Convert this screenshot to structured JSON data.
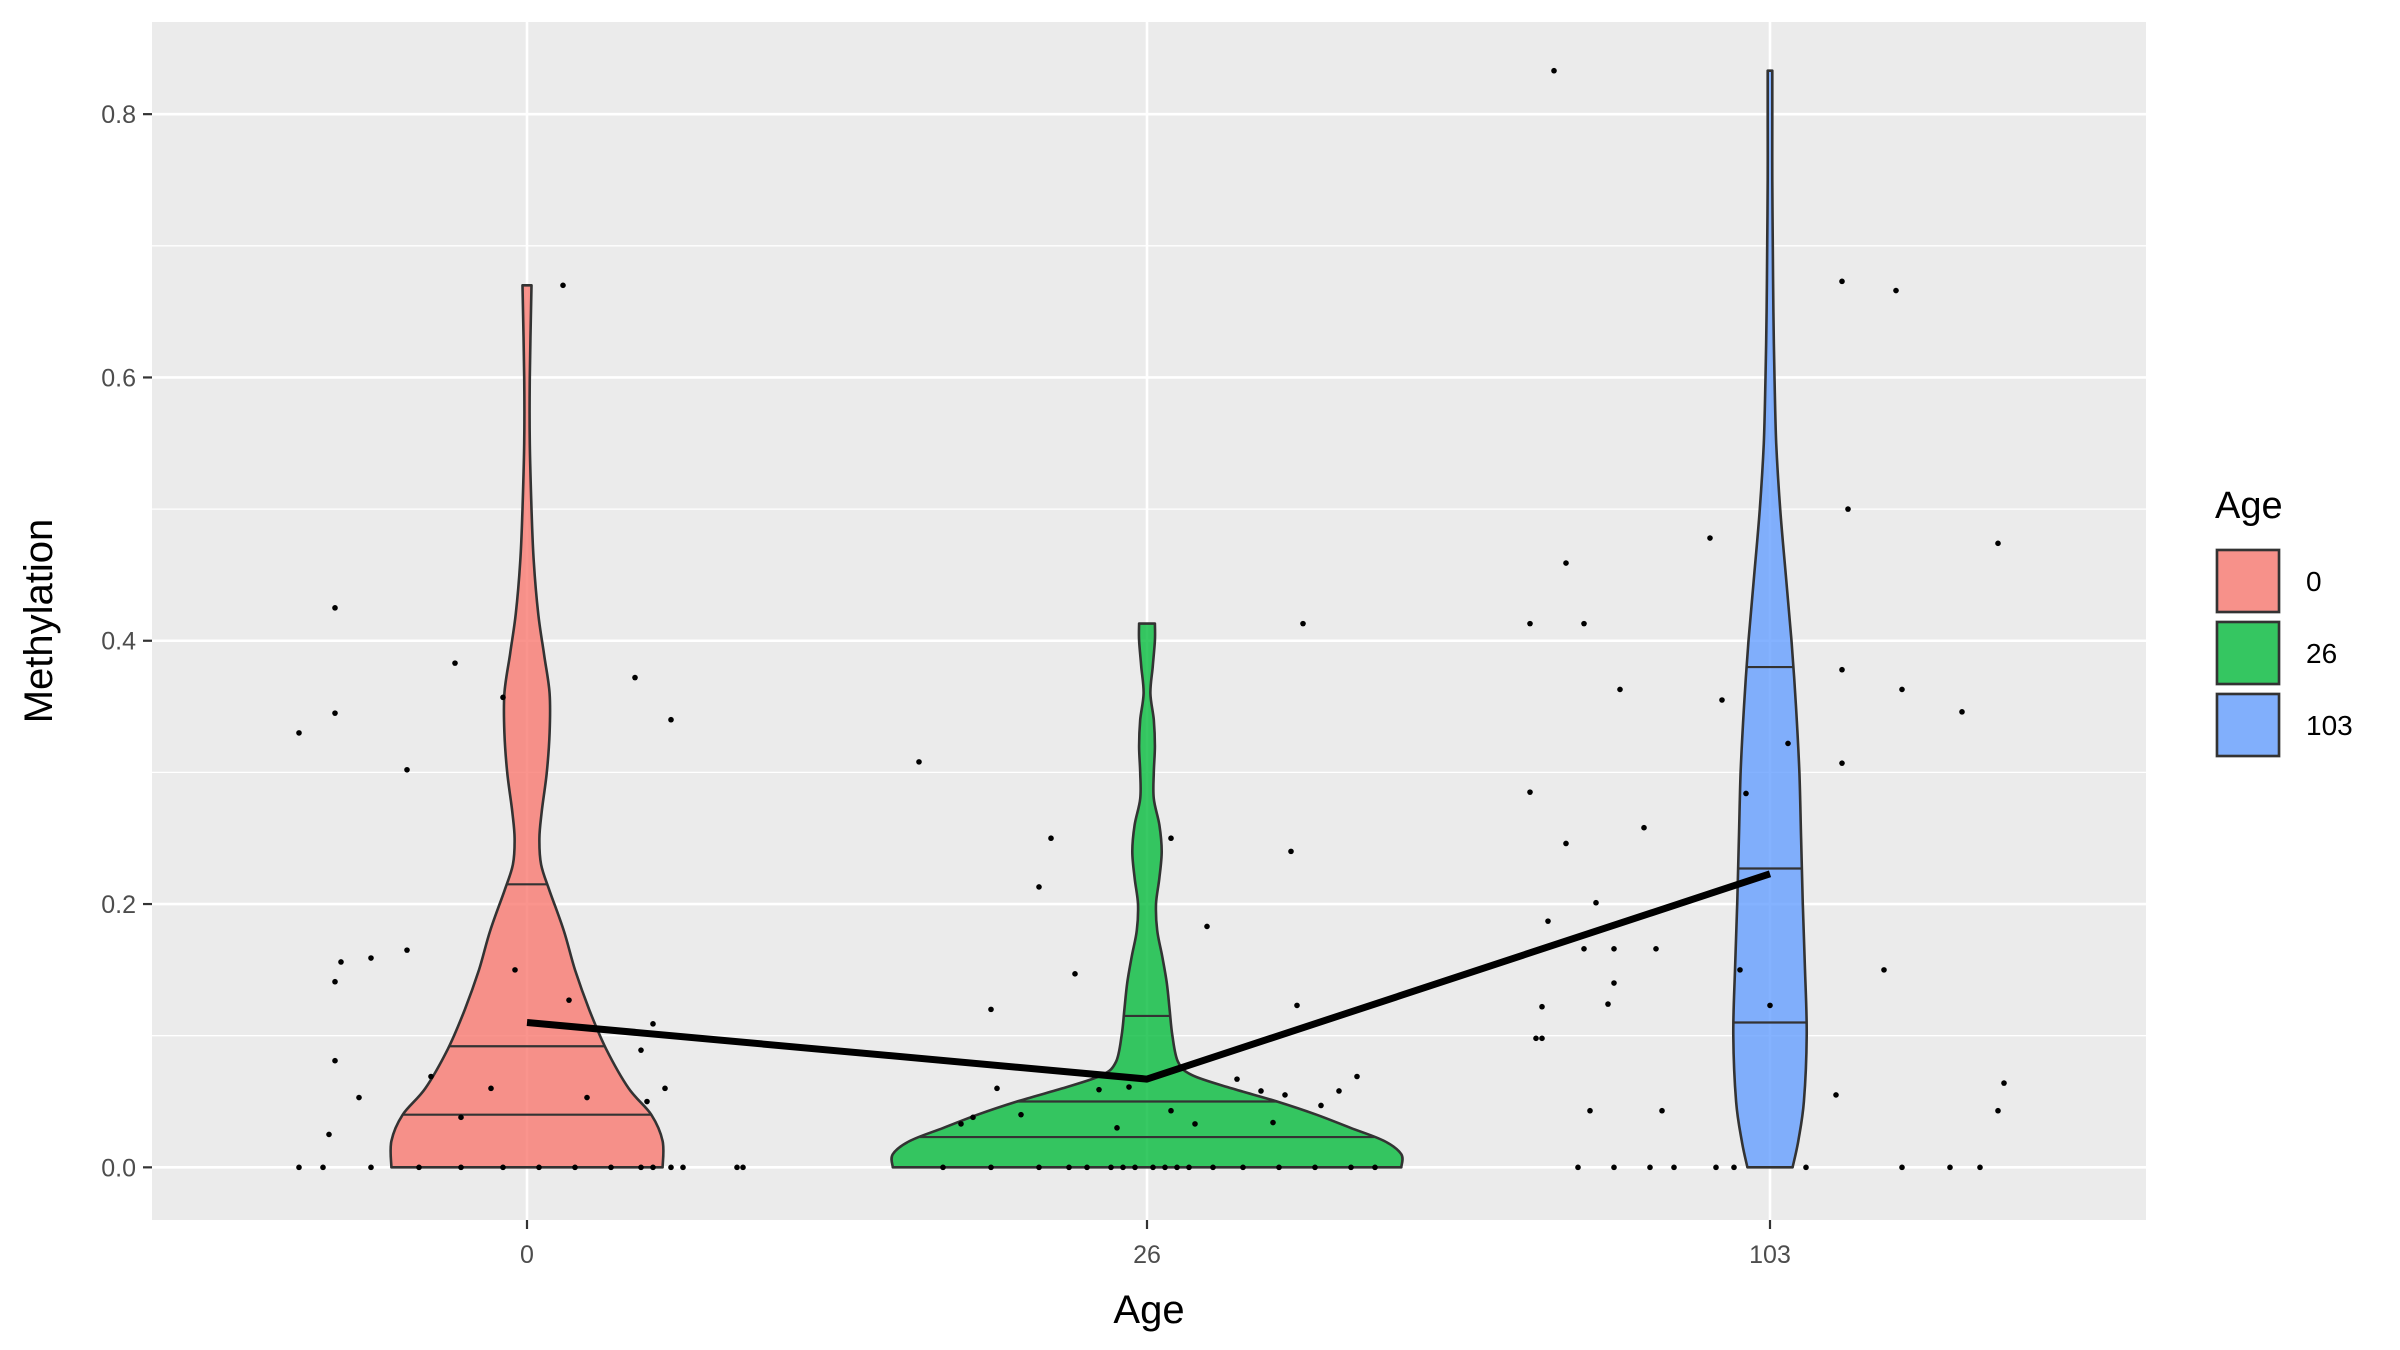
{
  "chart_data": {
    "type": "violin",
    "xlabel": "Age",
    "ylabel": "Methylation",
    "categories": [
      "0",
      "26",
      "103"
    ],
    "ylim": [
      -0.04,
      0.87
    ],
    "yticks": [
      0.0,
      0.2,
      0.4,
      0.6,
      0.8
    ],
    "ytick_labels": [
      "0.0",
      "0.2",
      "0.4",
      "0.6",
      "0.8"
    ],
    "grid": true,
    "legend": {
      "title": "Age",
      "position": "right",
      "entries": [
        {
          "label": "0",
          "color": "#F8766D"
        },
        {
          "label": "26",
          "color": "#00BA38"
        },
        {
          "label": "103",
          "color": "#619CFF"
        }
      ]
    },
    "series": [
      {
        "category": "0",
        "color": "#F8766D",
        "max": 0.67,
        "quantiles": {
          "q25": 0.04,
          "q50": 0.092,
          "q75": 0.215
        },
        "density": [
          [
            0.0,
            0.24
          ],
          [
            0.02,
            0.24
          ],
          [
            0.04,
            0.22
          ],
          [
            0.06,
            0.18
          ],
          [
            0.09,
            0.14
          ],
          [
            0.12,
            0.11
          ],
          [
            0.15,
            0.085
          ],
          [
            0.18,
            0.065
          ],
          [
            0.21,
            0.04
          ],
          [
            0.23,
            0.025
          ],
          [
            0.25,
            0.022
          ],
          [
            0.27,
            0.026
          ],
          [
            0.3,
            0.035
          ],
          [
            0.33,
            0.04
          ],
          [
            0.36,
            0.04
          ],
          [
            0.39,
            0.03
          ],
          [
            0.42,
            0.02
          ],
          [
            0.46,
            0.012
          ],
          [
            0.5,
            0.008
          ],
          [
            0.55,
            0.005
          ],
          [
            0.6,
            0.005
          ],
          [
            0.67,
            0.008
          ]
        ],
        "mean": 0.11,
        "points": [
          [
            -0.38,
            0.0
          ],
          [
            -0.34,
            0.0
          ],
          [
            -0.26,
            0.0
          ],
          [
            -0.18,
            0.0
          ],
          [
            -0.11,
            0.0
          ],
          [
            -0.04,
            0.0
          ],
          [
            0.02,
            0.0
          ],
          [
            0.08,
            0.0
          ],
          [
            0.14,
            0.0
          ],
          [
            0.19,
            0.0
          ],
          [
            0.21,
            0.0
          ],
          [
            0.24,
            0.0
          ],
          [
            0.26,
            0.0
          ],
          [
            0.35,
            0.0
          ],
          [
            0.36,
            0.0
          ],
          [
            -0.38,
            0.33
          ],
          [
            -0.32,
            0.345
          ],
          [
            -0.32,
            0.425
          ],
          [
            -0.33,
            0.025
          ],
          [
            -0.32,
            0.081
          ],
          [
            -0.32,
            0.141
          ],
          [
            -0.31,
            0.156
          ],
          [
            -0.28,
            0.053
          ],
          [
            -0.26,
            0.159
          ],
          [
            -0.2,
            0.165
          ],
          [
            -0.2,
            0.302
          ],
          [
            -0.16,
            0.069
          ],
          [
            -0.12,
            0.383
          ],
          [
            -0.11,
            0.038
          ],
          [
            -0.06,
            0.06
          ],
          [
            -0.04,
            0.357
          ],
          [
            -0.02,
            0.15
          ],
          [
            0.06,
            0.67
          ],
          [
            0.07,
            0.127
          ],
          [
            0.1,
            0.053
          ],
          [
            0.18,
            0.372
          ],
          [
            0.19,
            0.089
          ],
          [
            0.2,
            0.05
          ],
          [
            0.21,
            0.109
          ],
          [
            0.23,
            0.06
          ],
          [
            0.24,
            0.34
          ]
        ]
      },
      {
        "category": "26",
        "color": "#00BA38",
        "max": 0.413,
        "quantiles": {
          "q25": 0.023,
          "q50": 0.05,
          "q75": 0.115
        },
        "density": [
          [
            0.0,
            0.45
          ],
          [
            0.01,
            0.45
          ],
          [
            0.02,
            0.42
          ],
          [
            0.03,
            0.36
          ],
          [
            0.04,
            0.3
          ],
          [
            0.05,
            0.23
          ],
          [
            0.06,
            0.15
          ],
          [
            0.07,
            0.08
          ],
          [
            0.08,
            0.055
          ],
          [
            0.1,
            0.045
          ],
          [
            0.12,
            0.04
          ],
          [
            0.14,
            0.035
          ],
          [
            0.16,
            0.027
          ],
          [
            0.18,
            0.018
          ],
          [
            0.2,
            0.016
          ],
          [
            0.22,
            0.022
          ],
          [
            0.24,
            0.026
          ],
          [
            0.26,
            0.022
          ],
          [
            0.28,
            0.012
          ],
          [
            0.3,
            0.012
          ],
          [
            0.32,
            0.014
          ],
          [
            0.34,
            0.012
          ],
          [
            0.36,
            0.006
          ],
          [
            0.38,
            0.01
          ],
          [
            0.4,
            0.014
          ],
          [
            0.413,
            0.014
          ]
        ],
        "mean": 0.067,
        "points": [
          [
            -0.34,
            0.0
          ],
          [
            -0.26,
            0.0
          ],
          [
            -0.18,
            0.0
          ],
          [
            -0.13,
            0.0
          ],
          [
            -0.1,
            0.0
          ],
          [
            -0.06,
            0.0
          ],
          [
            -0.04,
            0.0
          ],
          [
            -0.02,
            0.0
          ],
          [
            0.01,
            0.0
          ],
          [
            0.03,
            0.0
          ],
          [
            0.05,
            0.0
          ],
          [
            0.07,
            0.0
          ],
          [
            0.11,
            0.0
          ],
          [
            0.16,
            0.0
          ],
          [
            0.22,
            0.0
          ],
          [
            0.28,
            0.0
          ],
          [
            0.34,
            0.0
          ],
          [
            0.38,
            0.0
          ],
          [
            -0.38,
            0.308
          ],
          [
            -0.31,
            0.033
          ],
          [
            -0.29,
            0.038
          ],
          [
            -0.26,
            0.12
          ],
          [
            -0.25,
            0.06
          ],
          [
            -0.21,
            0.04
          ],
          [
            -0.18,
            0.213
          ],
          [
            -0.16,
            0.25
          ],
          [
            -0.12,
            0.147
          ],
          [
            -0.08,
            0.059
          ],
          [
            -0.05,
            0.03
          ],
          [
            -0.03,
            0.061
          ],
          [
            0.04,
            0.043
          ],
          [
            0.04,
            0.25
          ],
          [
            0.08,
            0.033
          ],
          [
            0.1,
            0.183
          ],
          [
            0.15,
            0.067
          ],
          [
            0.19,
            0.058
          ],
          [
            0.21,
            0.034
          ],
          [
            0.23,
            0.055
          ],
          [
            0.24,
            0.24
          ],
          [
            0.25,
            0.123
          ],
          [
            0.26,
            0.413
          ],
          [
            0.29,
            0.047
          ],
          [
            0.32,
            0.058
          ],
          [
            0.35,
            0.069
          ]
        ]
      },
      {
        "category": "103",
        "color": "#619CFF",
        "max": 0.833,
        "quantiles": {
          "q25": 0.11,
          "q50": 0.227,
          "q75": 0.38
        },
        "density": [
          [
            0.0,
            0.04
          ],
          [
            0.02,
            0.05
          ],
          [
            0.05,
            0.06
          ],
          [
            0.1,
            0.065
          ],
          [
            0.15,
            0.062
          ],
          [
            0.2,
            0.058
          ],
          [
            0.25,
            0.055
          ],
          [
            0.3,
            0.052
          ],
          [
            0.35,
            0.046
          ],
          [
            0.4,
            0.038
          ],
          [
            0.45,
            0.028
          ],
          [
            0.5,
            0.018
          ],
          [
            0.55,
            0.011
          ],
          [
            0.6,
            0.008
          ],
          [
            0.65,
            0.006
          ],
          [
            0.7,
            0.005
          ],
          [
            0.75,
            0.004
          ],
          [
            0.8,
            0.004
          ],
          [
            0.833,
            0.004
          ]
        ],
        "mean": 0.223,
        "points": [
          [
            -0.32,
            0.0
          ],
          [
            -0.26,
            0.0
          ],
          [
            -0.2,
            0.0
          ],
          [
            -0.16,
            0.0
          ],
          [
            -0.09,
            0.0
          ],
          [
            -0.06,
            0.0
          ],
          [
            0.06,
            0.0
          ],
          [
            0.22,
            0.0
          ],
          [
            0.3,
            0.0
          ],
          [
            0.35,
            0.0
          ],
          [
            -0.4,
            0.413
          ],
          [
            -0.4,
            0.285
          ],
          [
            -0.39,
            0.098
          ],
          [
            -0.38,
            0.098
          ],
          [
            -0.38,
            0.122
          ],
          [
            -0.37,
            0.187
          ],
          [
            -0.36,
            0.833
          ],
          [
            -0.34,
            0.459
          ],
          [
            -0.34,
            0.246
          ],
          [
            -0.31,
            0.413
          ],
          [
            -0.31,
            0.166
          ],
          [
            -0.3,
            0.043
          ],
          [
            -0.29,
            0.201
          ],
          [
            -0.27,
            0.124
          ],
          [
            -0.26,
            0.14
          ],
          [
            -0.26,
            0.166
          ],
          [
            -0.25,
            0.363
          ],
          [
            -0.21,
            0.258
          ],
          [
            -0.19,
            0.166
          ],
          [
            -0.18,
            0.043
          ],
          [
            -0.1,
            0.478
          ],
          [
            -0.08,
            0.355
          ],
          [
            -0.05,
            0.15
          ],
          [
            -0.04,
            0.284
          ],
          [
            0.0,
            0.123
          ],
          [
            0.03,
            0.322
          ],
          [
            0.11,
            0.055
          ],
          [
            0.12,
            0.673
          ],
          [
            0.12,
            0.378
          ],
          [
            0.12,
            0.307
          ],
          [
            0.13,
            0.5
          ],
          [
            0.19,
            0.15
          ],
          [
            0.21,
            0.666
          ],
          [
            0.22,
            0.363
          ],
          [
            0.32,
            0.346
          ],
          [
            0.38,
            0.474
          ],
          [
            0.38,
            0.043
          ],
          [
            0.39,
            0.064
          ]
        ]
      }
    ],
    "mean_line": [
      [
        0,
        0.11
      ],
      [
        1,
        0.067
      ],
      [
        2,
        0.223
      ]
    ]
  }
}
